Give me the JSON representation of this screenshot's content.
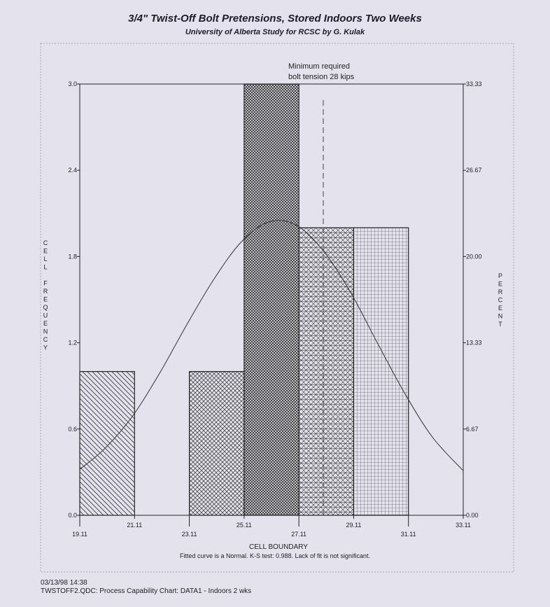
{
  "header": {
    "title": "3/4\" Twist-Off Bolt Pretensions, Stored Indoors Two Weeks",
    "subtitle": "University of Alberta Study for RCSC by G. Kulak"
  },
  "footer": {
    "timestamp": "03/13/98 14:38",
    "caption": "TWSTOFF2.QDC: Process Capability Chart:  DATA1 - Indoors 2 wks"
  },
  "chart_data": {
    "type": "bar",
    "title": "3/4\" Twist-Off Bolt Pretensions, Stored Indoors Two Weeks",
    "subtitle": "University of Alberta Study for RCSC by G. Kulak",
    "xlabel": "CELL BOUNDARY",
    "ylabel": "CELL FREQUENCY",
    "y2label": "PERCENT",
    "xlim": [
      19.11,
      33.11
    ],
    "ylim": [
      0,
      3.0
    ],
    "x_ticks_lower": [
      "19.11",
      "23.11",
      "27.11",
      "31.11"
    ],
    "x_ticks_upper": [
      "21.11",
      "25.11",
      "29.11",
      "33.11"
    ],
    "y_ticks": [
      "0.0",
      "0.6",
      "1.2",
      "1.8",
      "2.4",
      "3.0"
    ],
    "y2_ticks": [
      "0.00",
      "6.67",
      "13.33",
      "20.00",
      "26.67",
      "33.33"
    ],
    "bins": [
      {
        "from": 19.11,
        "to": 21.11,
        "frequency": 1
      },
      {
        "from": 21.11,
        "to": 23.11,
        "frequency": 0
      },
      {
        "from": 23.11,
        "to": 25.11,
        "frequency": 1
      },
      {
        "from": 25.11,
        "to": 27.11,
        "frequency": 3
      },
      {
        "from": 27.11,
        "to": 29.11,
        "frequency": 2
      },
      {
        "from": 29.11,
        "to": 31.11,
        "frequency": 2
      },
      {
        "from": 31.11,
        "to": 33.11,
        "frequency": 0
      }
    ],
    "fitted_curve": {
      "distribution": "Normal",
      "x": [
        19.11,
        20.0,
        21.0,
        22.0,
        23.0,
        24.0,
        25.0,
        26.0,
        27.0,
        28.0,
        29.0,
        30.0,
        31.0,
        32.0,
        33.11
      ],
      "y": [
        0.32,
        0.46,
        0.68,
        0.98,
        1.32,
        1.64,
        1.9,
        2.04,
        2.02,
        1.84,
        1.55,
        1.19,
        0.84,
        0.54,
        0.31
      ]
    },
    "reference_line": {
      "x": 28.0,
      "label_line1": "Minimum required",
      "label_line2": "bolt tension 28 kips"
    },
    "note": "Fitted curve is a Normal. K-S test: 0.988. Lack of fit is not significant.",
    "colors": {
      "background": "#e3e2ed",
      "bar_stroke": "#222222",
      "pattern": "#333333"
    }
  }
}
